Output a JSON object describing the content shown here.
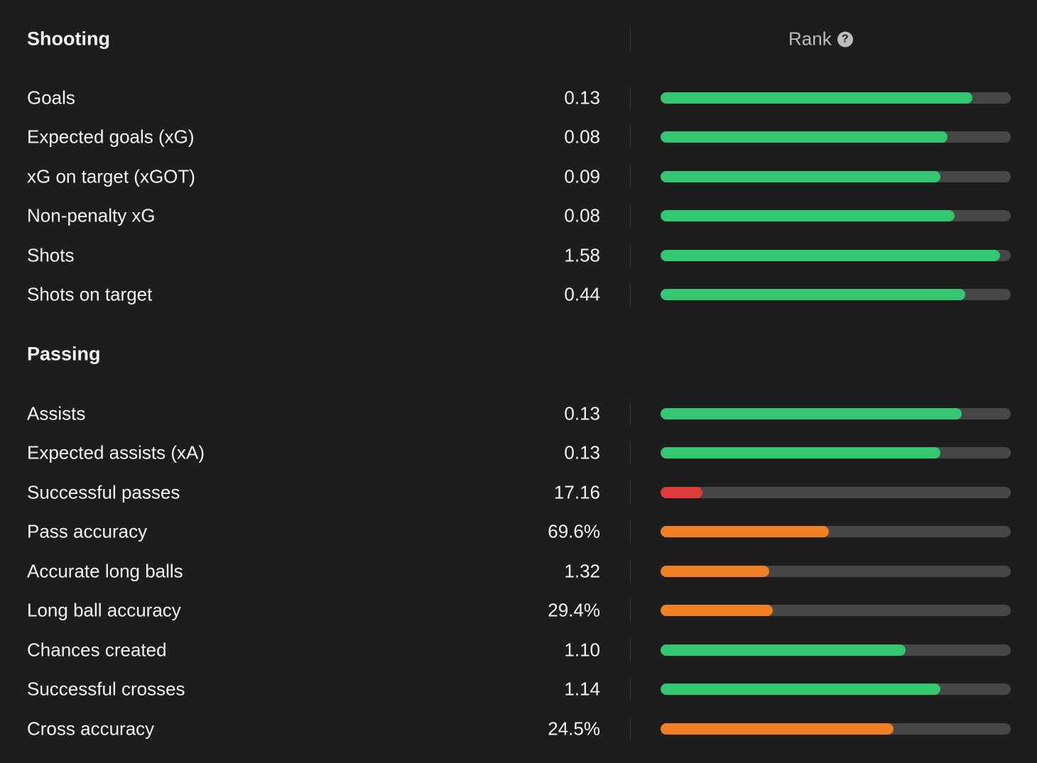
{
  "header": {
    "rank_label": "Rank",
    "help_icon": "question-circle-icon"
  },
  "colors": {
    "high": "#33c771",
    "mid": "#f08022",
    "low": "#e03a3a",
    "track": "#474747"
  },
  "sections": [
    {
      "title": "Shooting",
      "rows": [
        {
          "label": "Goals",
          "value": "0.13",
          "rank": 0.89,
          "level": "high"
        },
        {
          "label": "Expected goals (xG)",
          "value": "0.08",
          "rank": 0.82,
          "level": "high"
        },
        {
          "label": "xG on target (xGOT)",
          "value": "0.09",
          "rank": 0.8,
          "level": "high"
        },
        {
          "label": "Non-penalty xG",
          "value": "0.08",
          "rank": 0.84,
          "level": "high"
        },
        {
          "label": "Shots",
          "value": "1.58",
          "rank": 0.97,
          "level": "high"
        },
        {
          "label": "Shots on target",
          "value": "0.44",
          "rank": 0.87,
          "level": "high"
        }
      ]
    },
    {
      "title": "Passing",
      "rows": [
        {
          "label": "Assists",
          "value": "0.13",
          "rank": 0.86,
          "level": "high"
        },
        {
          "label": "Expected assists (xA)",
          "value": "0.13",
          "rank": 0.8,
          "level": "high"
        },
        {
          "label": "Successful passes",
          "value": "17.16",
          "rank": 0.12,
          "level": "low"
        },
        {
          "label": "Pass accuracy",
          "value": "69.6%",
          "rank": 0.48,
          "level": "mid"
        },
        {
          "label": "Accurate long balls",
          "value": "1.32",
          "rank": 0.31,
          "level": "mid"
        },
        {
          "label": "Long ball accuracy",
          "value": "29.4%",
          "rank": 0.32,
          "level": "mid"
        },
        {
          "label": "Chances created",
          "value": "1.10",
          "rank": 0.7,
          "level": "high"
        },
        {
          "label": "Successful crosses",
          "value": "1.14",
          "rank": 0.8,
          "level": "high"
        },
        {
          "label": "Cross accuracy",
          "value": "24.5%",
          "rank": 0.665,
          "level": "mid"
        }
      ]
    }
  ]
}
